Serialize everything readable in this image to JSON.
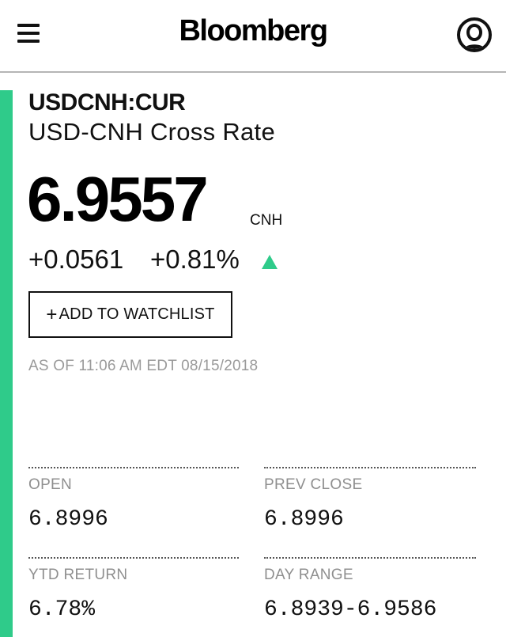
{
  "header": {
    "logo": "Bloomberg",
    "menu_icon": "hamburger-menu-icon",
    "user_icon": "user-profile-icon"
  },
  "colors": {
    "accent": "#2fcb8a",
    "positive": "#2fcb8a",
    "muted_text": "#9a9a9a"
  },
  "quote": {
    "ticker": "USDCNH:CUR",
    "name": "USD-CNH Cross Rate",
    "price": "6.9557",
    "currency": "CNH",
    "change_abs": "+0.0561",
    "change_pct": "+0.81%",
    "direction_icon": "triangle-up-icon",
    "watchlist_plus": "+",
    "watchlist_label": "ADD TO WATCHLIST",
    "timestamp": "AS OF 11:06 AM EDT 08/15/2018"
  },
  "stats": [
    {
      "label": "OPEN",
      "value": "6.8996"
    },
    {
      "label": "PREV CLOSE",
      "value": "6.8996"
    },
    {
      "label": "YTD RETURN",
      "value": "6.78%"
    },
    {
      "label": "DAY RANGE",
      "value": "6.8939-6.9586"
    }
  ]
}
